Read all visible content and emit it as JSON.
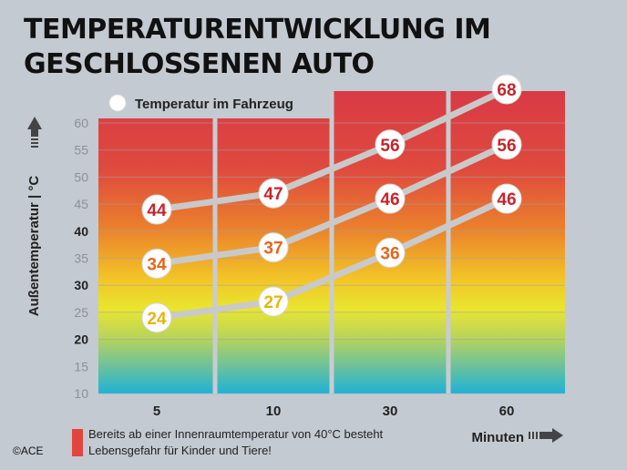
{
  "title": "TEMPERATURENTWICKLUNG IM GESCHLOSSENEN AUTO",
  "note": "Bereits ab einer Innenraumtemperatur von 40°C besteht Lebensgefahr für Kinder und Tiere!",
  "copyright": "©ACE",
  "colors": {
    "background": "#c3cad1",
    "danger_red": "#d93a45",
    "line": "#c9c9c9",
    "label_red": "#c8242b",
    "label_orange": "#e8641a",
    "label_yellow": "#e8b40c"
  },
  "chart_data": {
    "type": "line",
    "xlabel": "Minuten",
    "ylabel": "Außentemperatur | °C",
    "categories": [
      "5",
      "10",
      "30",
      "60"
    ],
    "ylim": [
      10,
      60
    ],
    "yticks": [
      10,
      15,
      20,
      25,
      30,
      35,
      40,
      45,
      50,
      55,
      60
    ],
    "legend": "Temperatur im Fahrzeug",
    "series": [
      {
        "values": [
          44,
          47,
          56,
          68
        ],
        "outside_temperature": 40
      },
      {
        "values": [
          34,
          37,
          46,
          56
        ],
        "outside_temperature": 30
      },
      {
        "values": [
          24,
          27,
          36,
          46
        ],
        "outside_temperature": 20
      }
    ],
    "danger_threshold": 40,
    "grid": true,
    "legend_position": "top-left"
  }
}
